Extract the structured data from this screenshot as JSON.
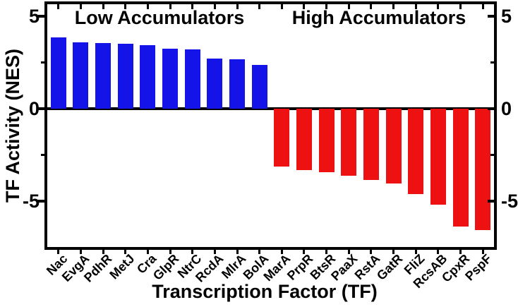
{
  "chart_data": {
    "type": "bar",
    "title": "",
    "xlabel": "Transcription Factor (TF)",
    "ylabel": "TF Activity (NES)",
    "ylim": [
      -7.5,
      5.65
    ],
    "y_major_ticks": [
      5,
      0,
      -5
    ],
    "y_minor_ticks": [
      2.5,
      -2.5
    ],
    "y_tick_labels": [
      "5",
      "0",
      "-5"
    ],
    "grid": false,
    "frame": true,
    "legend": "none",
    "annotations": {
      "low": "Low Accumulators",
      "high": "High Accumulators"
    },
    "series": [
      {
        "name": "Low Accumulators",
        "color": "#1414e8",
        "categories": [
          "Nac",
          "EvgA",
          "PdhR",
          "MetJ",
          "Cra",
          "GlpR",
          "NtrC",
          "RcdA",
          "MlrA",
          "BolA"
        ],
        "values": [
          3.85,
          3.6,
          3.55,
          3.5,
          3.45,
          3.25,
          3.2,
          2.7,
          2.65,
          2.35
        ]
      },
      {
        "name": "High Accumulators",
        "color": "#ee1111",
        "categories": [
          "MarA",
          "PrpR",
          "BtsR",
          "PaaX",
          "RstA",
          "GatR",
          "FliZ",
          "RcsAB",
          "CpxR",
          "PspF"
        ],
        "values": [
          -3.15,
          -3.35,
          -3.45,
          -3.65,
          -3.85,
          -4.05,
          -4.65,
          -5.2,
          -6.4,
          -6.6
        ]
      }
    ]
  },
  "colors": {
    "axis": "#000000",
    "background": "#ffffff",
    "low_bar": "#1414e8",
    "high_bar": "#ee1111"
  }
}
